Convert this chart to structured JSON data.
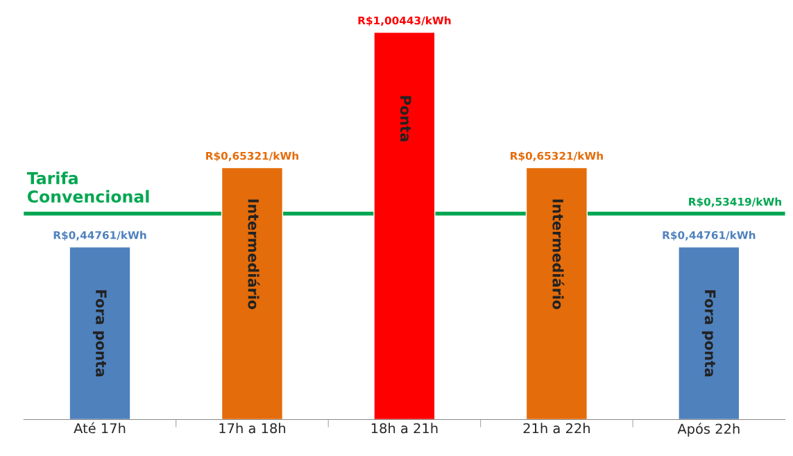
{
  "chart_data": {
    "type": "bar",
    "categories": [
      "Até 17h",
      "17h a 18h",
      "18h a 21h",
      "21h a 22h",
      "Após 22h"
    ],
    "values": [
      0.44761,
      0.65321,
      1.00443,
      0.65321,
      0.44761
    ],
    "colors": [
      "#4f81bd",
      "#e46c0a",
      "#ff0000",
      "#e46c0a",
      "#4f81bd"
    ],
    "value_labels": [
      "R$0,44761/kWh",
      "R$0,65321/kWh",
      "R$1,00443/kWh",
      "R$0,65321/kWh",
      "R$0,44761/kWh"
    ],
    "ref_lines": [
      {
        "axis": "y",
        "value": 0.53419,
        "label": "Tarifa\nConvencional",
        "color": "#00a651"
      }
    ],
    "annotations": [
      {
        "text": "R$0,53419/kWh",
        "y": 0.53419
      },
      "Fora ponta",
      "Intermediário",
      "Ponta",
      "Intermediário",
      "Fora ponta"
    ],
    "grid": false
  }
}
